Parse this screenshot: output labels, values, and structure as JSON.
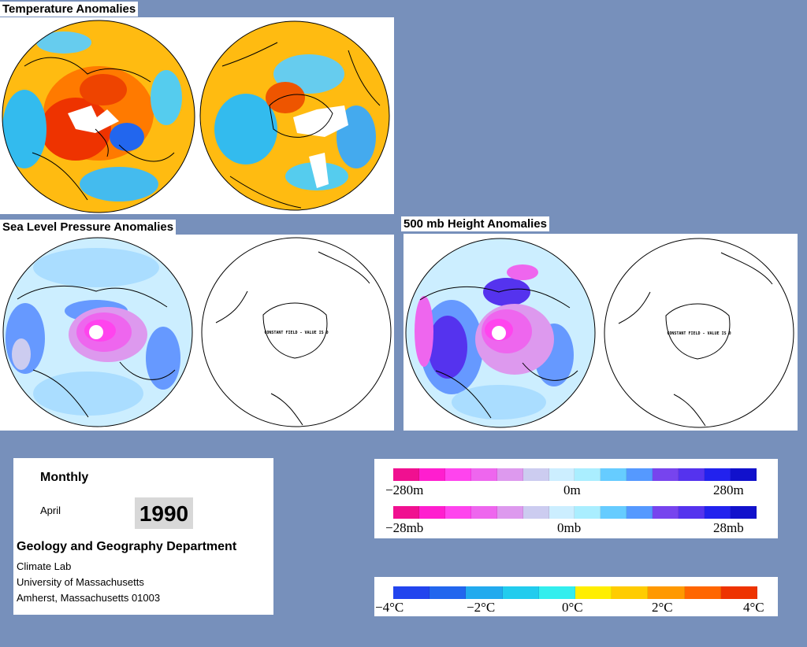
{
  "sections": {
    "temperature": {
      "title": "Temperature Anomalies"
    },
    "slp": {
      "title": "Sea Level Pressure Anomalies",
      "south_note": "CONSTANT FIELD - VALUE IS 0"
    },
    "height": {
      "title": "500 mb Height Anomalies",
      "south_note": "CONSTANT FIELD - VALUE IS 0"
    }
  },
  "info": {
    "period": "Monthly",
    "month": "April",
    "year": "1990",
    "department": "Geology and Geography Department",
    "lines": [
      "Climate Lab",
      "University of Massachusetts",
      "Amherst, Massachusetts 01003"
    ]
  },
  "legends": {
    "height": {
      "min": "−280m",
      "mid": "0m",
      "max": "280m"
    },
    "pressure": {
      "min": "−28mb",
      "mid": "0mb",
      "max": "28mb"
    },
    "temperature": {
      "t1": "−4°C",
      "t2": "−2°C",
      "t3": "0°C",
      "t4": "2°C",
      "t5": "4°C"
    }
  },
  "colors": {
    "background": "#7790bb",
    "anomaly_scale": [
      "#f01090",
      "#ff1ecf",
      "#ff44ee",
      "#ee66ee",
      "#dd99ee",
      "#ccccf0",
      "#cceeff",
      "#aaeeff",
      "#66ccff",
      "#5599ff",
      "#7744ee",
      "#5533ee",
      "#2222ee",
      "#1111cc"
    ],
    "temperature_scale": [
      "#2244ee",
      "#2266ee",
      "#22aaee",
      "#22ccee",
      "#33eeee",
      "#ffee00",
      "#ffcc00",
      "#ff9900",
      "#ff6600",
      "#ee3300"
    ]
  }
}
